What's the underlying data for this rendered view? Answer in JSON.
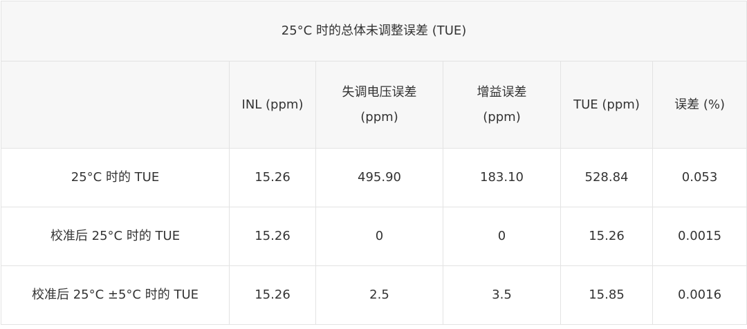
{
  "table": {
    "title": "25°C 时的总体未调整误差 (TUE)",
    "headers": [
      "",
      "INL (ppm)",
      "失调电压误差\n(ppm)",
      "增益误差\n(ppm)",
      "TUE (ppm)",
      "误差 (%)"
    ],
    "headers_lines": [
      [
        ""
      ],
      [
        "INL (ppm)"
      ],
      [
        "失调电压误差",
        "(ppm)"
      ],
      [
        "增益误差",
        "(ppm)"
      ],
      [
        "TUE (ppm)"
      ],
      [
        "误差 (%)"
      ]
    ],
    "rows": [
      [
        "25°C 时的 TUE",
        "15.26",
        "495.90",
        "183.10",
        "528.84",
        "0.053"
      ],
      [
        "校准后 25°C 时的 TUE",
        "15.26",
        "0",
        "0",
        "15.26",
        "0.0015"
      ],
      [
        "校准后 25°C ±5°C 时的 TUE",
        "15.26",
        "2.5",
        "3.5",
        "15.85",
        "0.0016"
      ]
    ]
  }
}
